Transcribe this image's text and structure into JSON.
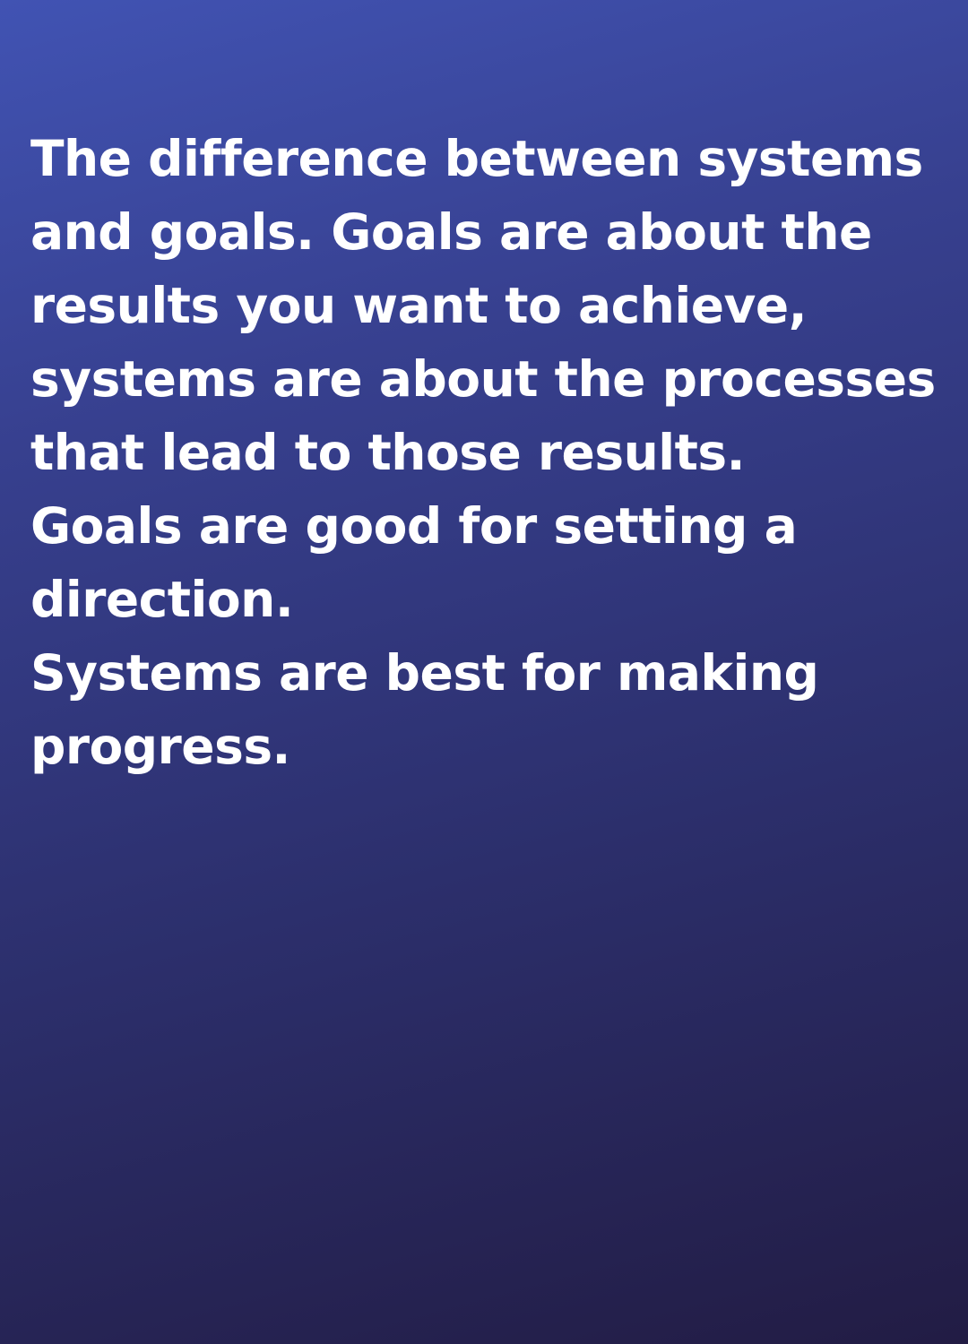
{
  "background": {
    "gradient_start": "#4153b3",
    "gradient_end": "#221c44"
  },
  "text_color": "#ffffff",
  "quote": {
    "lines": [
      "The difference between systems",
      "and goals. Goals are about the",
      "results you want to achieve,",
      "systems are about the processes",
      "that lead to those results.",
      "Goals are good for setting a",
      "direction.",
      "Systems are best for making",
      "progress."
    ]
  }
}
